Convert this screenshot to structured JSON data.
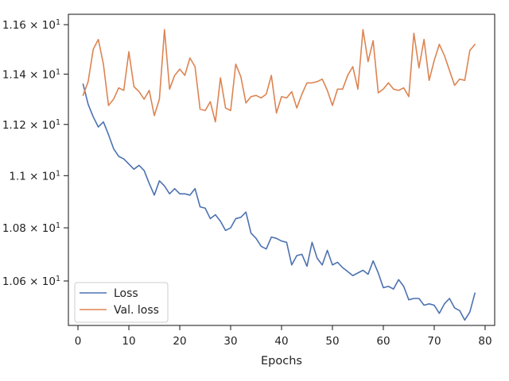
{
  "chart_data": {
    "type": "line",
    "xlabel": "Epochs",
    "ylabel": "",
    "title": "",
    "xlim": [
      -1.88,
      81.88
    ],
    "ylim": [
      10.4355,
      11.6425
    ],
    "x_ticks": [
      0,
      10,
      20,
      30,
      40,
      50,
      60,
      70,
      80
    ],
    "x_tick_labels": [
      "0",
      "10",
      "20",
      "30",
      "40",
      "50",
      "60",
      "70",
      "80"
    ],
    "y_ticks": [
      10.6,
      10.8,
      11.0,
      11.2,
      11.4,
      11.6
    ],
    "y_tick_labels": [
      {
        "mantissa": "1.06",
        "times": "×",
        "base": "10",
        "exp": "1"
      },
      {
        "mantissa": "1.08",
        "times": "×",
        "base": "10",
        "exp": "1"
      },
      {
        "mantissa": "1.1",
        "times": "×",
        "base": "10",
        "exp": "1"
      },
      {
        "mantissa": "1.12",
        "times": "×",
        "base": "10",
        "exp": "1"
      },
      {
        "mantissa": "1.14",
        "times": "×",
        "base": "10",
        "exp": "1"
      },
      {
        "mantissa": "1.16",
        "times": "×",
        "base": "10",
        "exp": "1"
      }
    ],
    "log_scale_y": true,
    "grid": false,
    "legend_position": "lower-left",
    "x": [
      1,
      2,
      3,
      4,
      5,
      6,
      7,
      8,
      9,
      10,
      11,
      12,
      13,
      14,
      15,
      16,
      17,
      18,
      19,
      20,
      21,
      22,
      23,
      24,
      25,
      26,
      27,
      28,
      29,
      30,
      31,
      32,
      33,
      34,
      35,
      36,
      37,
      38,
      39,
      40,
      41,
      42,
      43,
      44,
      45,
      46,
      47,
      48,
      49,
      50,
      51,
      52,
      53,
      54,
      55,
      56,
      57,
      58,
      59,
      60,
      61,
      62,
      63,
      64,
      65,
      66,
      67,
      68,
      69,
      70,
      71,
      72,
      73,
      74,
      75,
      76,
      77,
      78
    ],
    "series": [
      {
        "name": "Loss",
        "color": "#4c72b0",
        "values": [
          11.36,
          11.28,
          11.23,
          11.19,
          11.21,
          11.16,
          11.105,
          11.075,
          11.065,
          11.045,
          11.025,
          11.04,
          11.02,
          10.97,
          10.925,
          10.98,
          10.96,
          10.93,
          10.95,
          10.93,
          10.93,
          10.925,
          10.95,
          10.88,
          10.875,
          10.835,
          10.85,
          10.825,
          10.79,
          10.8,
          10.835,
          10.84,
          10.86,
          10.78,
          10.76,
          10.73,
          10.72,
          10.765,
          10.76,
          10.75,
          10.745,
          10.66,
          10.695,
          10.7,
          10.655,
          10.745,
          10.685,
          10.66,
          10.715,
          10.66,
          10.67,
          10.65,
          10.635,
          10.62,
          10.63,
          10.64,
          10.625,
          10.675,
          10.63,
          10.575,
          10.58,
          10.57,
          10.605,
          10.58,
          10.53,
          10.535,
          10.535,
          10.51,
          10.515,
          10.51,
          10.48,
          10.515,
          10.535,
          10.5,
          10.49,
          10.455,
          10.485,
          10.555
        ]
      },
      {
        "name": "Val. loss",
        "color": "#dd8452",
        "values": [
          11.315,
          11.37,
          11.5,
          11.54,
          11.44,
          11.275,
          11.3,
          11.345,
          11.335,
          11.49,
          11.35,
          11.33,
          11.3,
          11.335,
          11.235,
          11.3,
          11.58,
          11.34,
          11.395,
          11.42,
          11.395,
          11.465,
          11.43,
          11.26,
          11.255,
          11.29,
          11.21,
          11.385,
          11.265,
          11.255,
          11.44,
          11.39,
          11.285,
          11.31,
          11.315,
          11.305,
          11.32,
          11.395,
          11.245,
          11.31,
          11.305,
          11.33,
          11.265,
          11.32,
          11.365,
          11.365,
          11.37,
          11.38,
          11.335,
          11.275,
          11.34,
          11.34,
          11.395,
          11.43,
          11.34,
          11.58,
          11.45,
          11.535,
          11.325,
          11.34,
          11.365,
          11.34,
          11.335,
          11.345,
          11.31,
          11.565,
          11.425,
          11.54,
          11.375,
          11.455,
          11.52,
          11.475,
          11.415,
          11.355,
          11.38,
          11.375,
          11.495,
          11.52
        ]
      }
    ]
  }
}
